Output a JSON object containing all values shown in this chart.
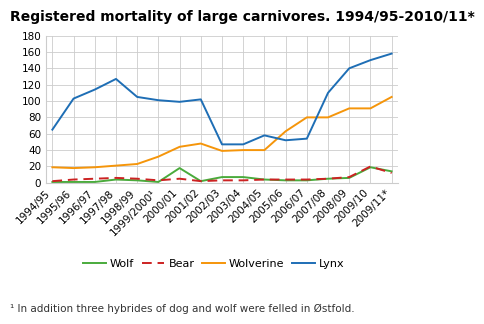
{
  "title": "Registered mortality of large carnivores. 1994/95-2010/11*",
  "footnote": "¹ In addition three hybrides of dog and wolf were felled in Østfold.",
  "x_labels": [
    "1994/95",
    "1995/96",
    "1996/97",
    "1997/98",
    "1998/99",
    "1999/2000¹",
    "2000/01",
    "2001/02",
    "2002/03",
    "2003/04",
    "2004/05",
    "2005/06",
    "2006/07",
    "2007/08",
    "2008/09",
    "2009/10",
    "2009/11*"
  ],
  "wolf": [
    1,
    1,
    1,
    4,
    3,
    1,
    18,
    2,
    7,
    7,
    4,
    3,
    3,
    5,
    6,
    19,
    14
  ],
  "bear": [
    2,
    4,
    5,
    6,
    5,
    3,
    5,
    2,
    3,
    3,
    4,
    4,
    4,
    5,
    7,
    20,
    12
  ],
  "wolverine": [
    19,
    18,
    19,
    21,
    23,
    32,
    44,
    48,
    39,
    40,
    40,
    63,
    80,
    80,
    91,
    91,
    105
  ],
  "lynx": [
    65,
    103,
    114,
    127,
    105,
    101,
    99,
    102,
    47,
    47,
    58,
    52,
    54,
    110,
    140,
    150,
    158
  ],
  "wolf_color": "#4aab3c",
  "bear_color": "#cc2222",
  "wolverine_color": "#f5950a",
  "lynx_color": "#1e6eb5",
  "ylim": [
    0,
    180
  ],
  "yticks": [
    0,
    20,
    40,
    60,
    80,
    100,
    120,
    140,
    160,
    180
  ],
  "bg_color": "#ffffff",
  "grid_color": "#cccccc",
  "title_fontsize": 10,
  "tick_fontsize": 7.5,
  "legend_fontsize": 8,
  "footnote_fontsize": 7.5
}
